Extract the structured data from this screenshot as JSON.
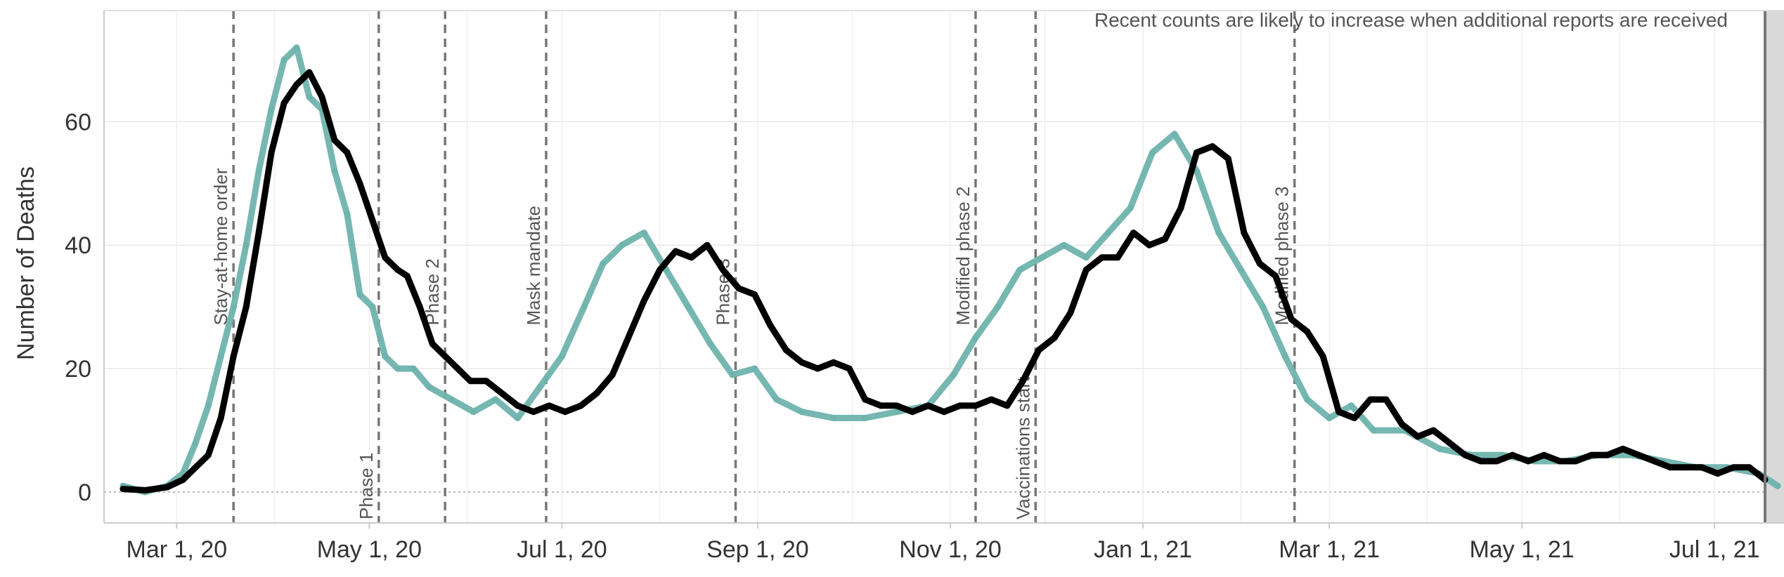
{
  "chart_data": {
    "type": "line",
    "title": "",
    "xlabel": "",
    "ylabel": "Number of Deaths",
    "ylim": [
      -5,
      78
    ],
    "xlim": [
      "2020-02-07",
      "2021-07-23"
    ],
    "grid": {
      "horizontal": true,
      "vertical": true
    },
    "x_ticks": [
      {
        "date": "2020-03-01",
        "label": "Mar 1, 20"
      },
      {
        "date": "2020-05-01",
        "label": "May 1, 20"
      },
      {
        "date": "2020-07-01",
        "label": "Jul 1, 20"
      },
      {
        "date": "2020-09-01",
        "label": "Sep 1, 20"
      },
      {
        "date": "2020-11-01",
        "label": "Nov 1, 20"
      },
      {
        "date": "2021-01-01",
        "label": "Jan 1, 21"
      },
      {
        "date": "2021-03-01",
        "label": "Mar 1, 21"
      },
      {
        "date": "2021-05-01",
        "label": "May 1, 21"
      },
      {
        "date": "2021-07-01",
        "label": "Jul 1, 21"
      }
    ],
    "y_ticks": [
      0,
      20,
      40,
      60
    ],
    "events": [
      {
        "date": "2020-03-19",
        "label": "Stay-at-home order",
        "position": "top"
      },
      {
        "date": "2020-05-04",
        "label": "Phase 1",
        "position": "bottom"
      },
      {
        "date": "2020-05-25",
        "label": "Phase 2",
        "position": "top"
      },
      {
        "date": "2020-06-26",
        "label": "Mask mandate",
        "position": "top"
      },
      {
        "date": "2020-08-25",
        "label": "Phase 3",
        "position": "top"
      },
      {
        "date": "2020-11-09",
        "label": "Modified phase 2",
        "position": "top"
      },
      {
        "date": "2020-11-28",
        "label": "Vaccinations start",
        "position": "bottom"
      },
      {
        "date": "2021-02-18",
        "label": "Modified phase 3",
        "position": "top"
      }
    ],
    "incomplete_region": {
      "start": "2021-07-17",
      "end": "2021-07-23"
    },
    "annotation": "Recent counts are likely to increase when additional reports are received",
    "colors": {
      "daily": "#6fb3ad",
      "average": "#000000",
      "event_line": "#777777",
      "shade": "#d9d9d9"
    },
    "series": [
      {
        "role": "daily",
        "points": [
          [
            "2020-02-13",
            1
          ],
          [
            "2020-02-20",
            0
          ],
          [
            "2020-02-27",
            1
          ],
          [
            "2020-03-03",
            3
          ],
          [
            "2020-03-07",
            8
          ],
          [
            "2020-03-11",
            14
          ],
          [
            "2020-03-15",
            22
          ],
          [
            "2020-03-19",
            30
          ],
          [
            "2020-03-23",
            40
          ],
          [
            "2020-03-27",
            52
          ],
          [
            "2020-03-31",
            62
          ],
          [
            "2020-04-04",
            70
          ],
          [
            "2020-04-08",
            72
          ],
          [
            "2020-04-12",
            64
          ],
          [
            "2020-04-16",
            62
          ],
          [
            "2020-04-20",
            52
          ],
          [
            "2020-04-24",
            45
          ],
          [
            "2020-04-28",
            32
          ],
          [
            "2020-05-02",
            30
          ],
          [
            "2020-05-06",
            22
          ],
          [
            "2020-05-10",
            20
          ],
          [
            "2020-05-15",
            20
          ],
          [
            "2020-05-20",
            17
          ],
          [
            "2020-05-27",
            15
          ],
          [
            "2020-06-03",
            13
          ],
          [
            "2020-06-10",
            15
          ],
          [
            "2020-06-17",
            12
          ],
          [
            "2020-06-24",
            17
          ],
          [
            "2020-07-01",
            22
          ],
          [
            "2020-07-08",
            30
          ],
          [
            "2020-07-14",
            37
          ],
          [
            "2020-07-20",
            40
          ],
          [
            "2020-07-27",
            42
          ],
          [
            "2020-08-03",
            36
          ],
          [
            "2020-08-10",
            30
          ],
          [
            "2020-08-17",
            24
          ],
          [
            "2020-08-24",
            19
          ],
          [
            "2020-08-31",
            20
          ],
          [
            "2020-09-07",
            15
          ],
          [
            "2020-09-15",
            13
          ],
          [
            "2020-09-25",
            12
          ],
          [
            "2020-10-05",
            12
          ],
          [
            "2020-10-15",
            13
          ],
          [
            "2020-10-25",
            14
          ],
          [
            "2020-11-02",
            19
          ],
          [
            "2020-11-09",
            25
          ],
          [
            "2020-11-16",
            30
          ],
          [
            "2020-11-23",
            36
          ],
          [
            "2020-11-30",
            38
          ],
          [
            "2020-12-07",
            40
          ],
          [
            "2020-12-14",
            38
          ],
          [
            "2020-12-21",
            42
          ],
          [
            "2020-12-28",
            46
          ],
          [
            "2021-01-04",
            55
          ],
          [
            "2021-01-11",
            58
          ],
          [
            "2021-01-18",
            52
          ],
          [
            "2021-01-25",
            42
          ],
          [
            "2021-02-01",
            36
          ],
          [
            "2021-02-08",
            30
          ],
          [
            "2021-02-15",
            22
          ],
          [
            "2021-02-22",
            15
          ],
          [
            "2021-03-01",
            12
          ],
          [
            "2021-03-08",
            14
          ],
          [
            "2021-03-15",
            10
          ],
          [
            "2021-03-25",
            10
          ],
          [
            "2021-04-05",
            7
          ],
          [
            "2021-04-15",
            6
          ],
          [
            "2021-04-25",
            6
          ],
          [
            "2021-05-05",
            5
          ],
          [
            "2021-05-15",
            5
          ],
          [
            "2021-05-25",
            6
          ],
          [
            "2021-06-05",
            6
          ],
          [
            "2021-06-15",
            5
          ],
          [
            "2021-06-25",
            4
          ],
          [
            "2021-07-05",
            4
          ],
          [
            "2021-07-15",
            3
          ],
          [
            "2021-07-21",
            1
          ]
        ]
      },
      {
        "role": "average",
        "points": [
          [
            "2020-02-13",
            0.5
          ],
          [
            "2020-02-20",
            0.3
          ],
          [
            "2020-02-27",
            0.8
          ],
          [
            "2020-03-03",
            2
          ],
          [
            "2020-03-07",
            4
          ],
          [
            "2020-03-11",
            6
          ],
          [
            "2020-03-15",
            12
          ],
          [
            "2020-03-19",
            22
          ],
          [
            "2020-03-23",
            30
          ],
          [
            "2020-03-27",
            42
          ],
          [
            "2020-03-31",
            55
          ],
          [
            "2020-04-04",
            63
          ],
          [
            "2020-04-08",
            66
          ],
          [
            "2020-04-12",
            68
          ],
          [
            "2020-04-16",
            64
          ],
          [
            "2020-04-20",
            57
          ],
          [
            "2020-04-24",
            55
          ],
          [
            "2020-04-28",
            50
          ],
          [
            "2020-05-02",
            44
          ],
          [
            "2020-05-06",
            38
          ],
          [
            "2020-05-10",
            36
          ],
          [
            "2020-05-13",
            35
          ],
          [
            "2020-05-17",
            30
          ],
          [
            "2020-05-21",
            24
          ],
          [
            "2020-05-25",
            22
          ],
          [
            "2020-05-29",
            20
          ],
          [
            "2020-06-02",
            18
          ],
          [
            "2020-06-07",
            18
          ],
          [
            "2020-06-12",
            16
          ],
          [
            "2020-06-17",
            14
          ],
          [
            "2020-06-22",
            13
          ],
          [
            "2020-06-27",
            14
          ],
          [
            "2020-07-02",
            13
          ],
          [
            "2020-07-07",
            14
          ],
          [
            "2020-07-12",
            16
          ],
          [
            "2020-07-17",
            19
          ],
          [
            "2020-07-22",
            25
          ],
          [
            "2020-07-27",
            31
          ],
          [
            "2020-08-01",
            36
          ],
          [
            "2020-08-06",
            39
          ],
          [
            "2020-08-11",
            38
          ],
          [
            "2020-08-16",
            40
          ],
          [
            "2020-08-21",
            36
          ],
          [
            "2020-08-26",
            33
          ],
          [
            "2020-08-31",
            32
          ],
          [
            "2020-09-05",
            27
          ],
          [
            "2020-09-10",
            23
          ],
          [
            "2020-09-15",
            21
          ],
          [
            "2020-09-20",
            20
          ],
          [
            "2020-09-25",
            21
          ],
          [
            "2020-09-30",
            20
          ],
          [
            "2020-10-05",
            15
          ],
          [
            "2020-10-10",
            14
          ],
          [
            "2020-10-15",
            14
          ],
          [
            "2020-10-20",
            13
          ],
          [
            "2020-10-25",
            14
          ],
          [
            "2020-10-30",
            13
          ],
          [
            "2020-11-04",
            14
          ],
          [
            "2020-11-09",
            14
          ],
          [
            "2020-11-14",
            15
          ],
          [
            "2020-11-19",
            14
          ],
          [
            "2020-11-24",
            18
          ],
          [
            "2020-11-29",
            23
          ],
          [
            "2020-12-04",
            25
          ],
          [
            "2020-12-09",
            29
          ],
          [
            "2020-12-14",
            36
          ],
          [
            "2020-12-19",
            38
          ],
          [
            "2020-12-24",
            38
          ],
          [
            "2020-12-29",
            42
          ],
          [
            "2021-01-03",
            40
          ],
          [
            "2021-01-08",
            41
          ],
          [
            "2021-01-13",
            46
          ],
          [
            "2021-01-18",
            55
          ],
          [
            "2021-01-23",
            56
          ],
          [
            "2021-01-28",
            54
          ],
          [
            "2021-02-02",
            42
          ],
          [
            "2021-02-07",
            37
          ],
          [
            "2021-02-12",
            35
          ],
          [
            "2021-02-17",
            28
          ],
          [
            "2021-02-22",
            26
          ],
          [
            "2021-02-27",
            22
          ],
          [
            "2021-03-04",
            13
          ],
          [
            "2021-03-09",
            12
          ],
          [
            "2021-03-14",
            15
          ],
          [
            "2021-03-19",
            15
          ],
          [
            "2021-03-24",
            11
          ],
          [
            "2021-03-29",
            9
          ],
          [
            "2021-04-03",
            10
          ],
          [
            "2021-04-08",
            8
          ],
          [
            "2021-04-13",
            6
          ],
          [
            "2021-04-18",
            5
          ],
          [
            "2021-04-23",
            5
          ],
          [
            "2021-04-28",
            6
          ],
          [
            "2021-05-03",
            5
          ],
          [
            "2021-05-08",
            6
          ],
          [
            "2021-05-13",
            5
          ],
          [
            "2021-05-18",
            5
          ],
          [
            "2021-05-23",
            6
          ],
          [
            "2021-05-28",
            6
          ],
          [
            "2021-06-02",
            7
          ],
          [
            "2021-06-07",
            6
          ],
          [
            "2021-06-12",
            5
          ],
          [
            "2021-06-17",
            4
          ],
          [
            "2021-06-22",
            4
          ],
          [
            "2021-06-27",
            4
          ],
          [
            "2021-07-02",
            3
          ],
          [
            "2021-07-07",
            4
          ],
          [
            "2021-07-12",
            4
          ],
          [
            "2021-07-17",
            2
          ]
        ]
      }
    ]
  }
}
